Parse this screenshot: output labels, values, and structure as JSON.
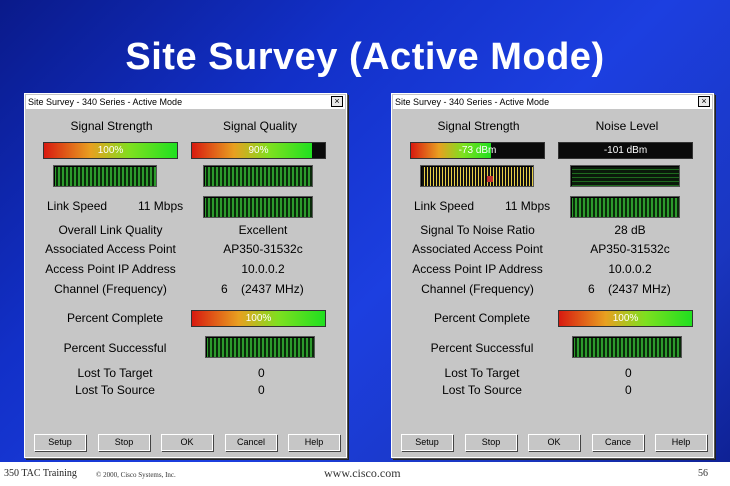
{
  "slide": {
    "title": "Site Survey (Active Mode)",
    "footer_left": "350 TAC Training",
    "footer_copy": "© 2000, Cisco Systems, Inc.",
    "footer_url": "www.cisco.com",
    "page_number": "56"
  },
  "left_window": {
    "title": "Site Survey - 340 Series - Active Mode",
    "close": "×",
    "signal_strength_label": "Signal Strength",
    "signal_quality_label": "Signal Quality",
    "signal_strength_value": "100%",
    "signal_strength_fraction": 1.0,
    "signal_quality_value": "90%",
    "signal_quality_fraction": 0.9,
    "link_speed_label": "Link Speed",
    "link_speed_value": "11 Mbps",
    "overall_link_quality_label": "Overall Link Quality",
    "overall_link_quality_value": "Excellent",
    "associated_ap_label": "Associated Access Point",
    "associated_ap_value": "AP350-31532c",
    "ap_ip_label": "Access Point IP Address",
    "ap_ip_value": "10.0.0.2",
    "channel_label": "Channel (Frequency)",
    "channel_value": "6    (2437 MHz)",
    "percent_complete_label": "Percent Complete",
    "percent_complete_value": "100%",
    "percent_complete_fraction": 1.0,
    "percent_successful_label": "Percent Successful",
    "lost_to_target_label": "Lost To Target",
    "lost_to_target_value": "0",
    "lost_to_source_label": "Lost To Source",
    "lost_to_source_value": "0",
    "buttons": [
      "Setup",
      "Stop",
      "OK",
      "Cancel",
      "Help"
    ]
  },
  "right_window": {
    "title": "Site Survey - 340 Series - Active Mode",
    "close": "×",
    "signal_strength_label": "Signal Strength",
    "noise_level_label": "Noise Level",
    "signal_strength_value": "-73 dBm",
    "signal_strength_fraction": 0.6,
    "noise_level_value": "-101 dBm",
    "noise_level_fraction": 0.0,
    "link_speed_label": "Link Speed",
    "link_speed_value": "11 Mbps",
    "snr_label": "Signal To Noise Ratio",
    "snr_value": "28 dB",
    "associated_ap_label": "Associated Access Point",
    "associated_ap_value": "AP350-31532c",
    "ap_ip_label": "Access Point IP Address",
    "ap_ip_value": "10.0.0.2",
    "channel_label": "Channel (Frequency)",
    "channel_value": "6    (2437 MHz)",
    "percent_complete_label": "Percent Complete",
    "percent_complete_value": "100%",
    "percent_complete_fraction": 1.0,
    "percent_successful_label": "Percent Successful",
    "lost_to_target_label": "Lost To Target",
    "lost_to_target_value": "0",
    "lost_to_source_label": "Lost To Source",
    "lost_to_source_value": "0",
    "buttons": [
      "Setup",
      "Stop",
      "OK",
      "Cance",
      "Help"
    ]
  }
}
